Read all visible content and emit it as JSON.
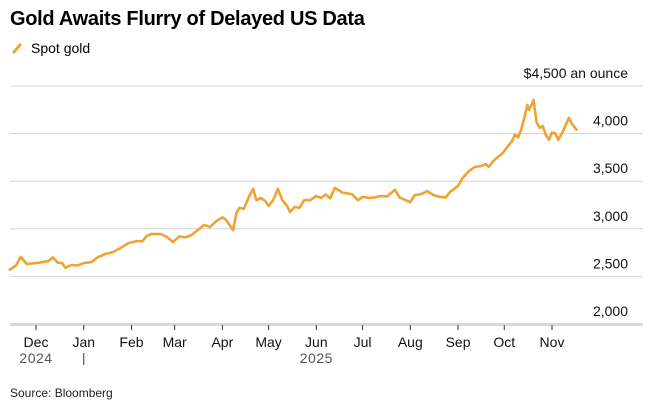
{
  "chart_data": {
    "type": "line",
    "title": "Gold Awaits Flurry of Delayed US Data",
    "xlabel": "",
    "ylabel": "",
    "y_unit_label": "$4,500 an ounce",
    "ylim": [
      2000,
      4500
    ],
    "y_ticks": [
      {
        "value": 4500,
        "label": "$4,500 an ounce"
      },
      {
        "value": 4000,
        "label": "4,000"
      },
      {
        "value": 3500,
        "label": "3,500"
      },
      {
        "value": 3000,
        "label": "3,000"
      },
      {
        "value": 2500,
        "label": "2,500"
      },
      {
        "value": 2000,
        "label": "2,000"
      }
    ],
    "x_range": [
      "2024-11-14",
      "2025-11-17"
    ],
    "x_ticks": [
      {
        "date": "2024-12-01",
        "label": "Dec"
      },
      {
        "date": "2025-01-01",
        "label": "Jan"
      },
      {
        "date": "2025-02-01",
        "label": "Feb"
      },
      {
        "date": "2025-03-01",
        "label": "Mar"
      },
      {
        "date": "2025-04-01",
        "label": "Apr"
      },
      {
        "date": "2025-05-01",
        "label": "May"
      },
      {
        "date": "2025-06-01",
        "label": "Jun"
      },
      {
        "date": "2025-07-01",
        "label": "Jul"
      },
      {
        "date": "2025-08-01",
        "label": "Aug"
      },
      {
        "date": "2025-09-01",
        "label": "Sep"
      },
      {
        "date": "2025-10-01",
        "label": "Oct"
      },
      {
        "date": "2025-11-01",
        "label": "Nov"
      }
    ],
    "year_labels": [
      {
        "date": "2024-12-01",
        "label": "2024"
      },
      {
        "date": "2025-06-01",
        "label": "2025"
      }
    ],
    "year_divider_date": "2025-01-01",
    "grid": true,
    "legend_position": "top-left",
    "series": [
      {
        "name": "Spot gold",
        "color": "#f0a232",
        "points": [
          [
            "2024-11-14",
            2570
          ],
          [
            "2024-11-18",
            2615
          ],
          [
            "2024-11-21",
            2705
          ],
          [
            "2024-11-25",
            2630
          ],
          [
            "2024-12-01",
            2640
          ],
          [
            "2024-12-05",
            2650
          ],
          [
            "2024-12-09",
            2660
          ],
          [
            "2024-12-12",
            2700
          ],
          [
            "2024-12-15",
            2645
          ],
          [
            "2024-12-18",
            2640
          ],
          [
            "2024-12-20",
            2590
          ],
          [
            "2024-12-24",
            2620
          ],
          [
            "2024-12-28",
            2615
          ],
          [
            "2025-01-01",
            2640
          ],
          [
            "2025-01-06",
            2650
          ],
          [
            "2025-01-10",
            2700
          ],
          [
            "2025-01-15",
            2735
          ],
          [
            "2025-01-20",
            2755
          ],
          [
            "2025-01-24",
            2790
          ],
          [
            "2025-01-30",
            2850
          ],
          [
            "2025-02-04",
            2870
          ],
          [
            "2025-02-08",
            2870
          ],
          [
            "2025-02-11",
            2925
          ],
          [
            "2025-02-14",
            2945
          ],
          [
            "2025-02-20",
            2945
          ],
          [
            "2025-02-24",
            2915
          ],
          [
            "2025-02-28",
            2860
          ],
          [
            "2025-03-04",
            2920
          ],
          [
            "2025-03-08",
            2910
          ],
          [
            "2025-03-12",
            2935
          ],
          [
            "2025-03-16",
            2985
          ],
          [
            "2025-03-20",
            3040
          ],
          [
            "2025-03-24",
            3020
          ],
          [
            "2025-03-28",
            3080
          ],
          [
            "2025-04-01",
            3120
          ],
          [
            "2025-04-03",
            3100
          ],
          [
            "2025-04-08",
            2985
          ],
          [
            "2025-04-10",
            3160
          ],
          [
            "2025-04-12",
            3220
          ],
          [
            "2025-04-15",
            3210
          ],
          [
            "2025-04-18",
            3330
          ],
          [
            "2025-04-21",
            3420
          ],
          [
            "2025-04-23",
            3300
          ],
          [
            "2025-04-26",
            3325
          ],
          [
            "2025-04-29",
            3290
          ],
          [
            "2025-05-01",
            3240
          ],
          [
            "2025-05-04",
            3300
          ],
          [
            "2025-05-07",
            3420
          ],
          [
            "2025-05-10",
            3300
          ],
          [
            "2025-05-13",
            3240
          ],
          [
            "2025-05-15",
            3175
          ],
          [
            "2025-05-18",
            3230
          ],
          [
            "2025-05-21",
            3220
          ],
          [
            "2025-05-24",
            3300
          ],
          [
            "2025-05-28",
            3300
          ],
          [
            "2025-06-01",
            3345
          ],
          [
            "2025-06-04",
            3325
          ],
          [
            "2025-06-07",
            3360
          ],
          [
            "2025-06-10",
            3320
          ],
          [
            "2025-06-13",
            3430
          ],
          [
            "2025-06-18",
            3380
          ],
          [
            "2025-06-24",
            3365
          ],
          [
            "2025-06-28",
            3300
          ],
          [
            "2025-07-01",
            3335
          ],
          [
            "2025-07-05",
            3325
          ],
          [
            "2025-07-09",
            3330
          ],
          [
            "2025-07-13",
            3345
          ],
          [
            "2025-07-17",
            3340
          ],
          [
            "2025-07-22",
            3410
          ],
          [
            "2025-07-25",
            3330
          ],
          [
            "2025-07-29",
            3300
          ],
          [
            "2025-08-01",
            3280
          ],
          [
            "2025-08-04",
            3355
          ],
          [
            "2025-08-08",
            3365
          ],
          [
            "2025-08-12",
            3395
          ],
          [
            "2025-08-16",
            3355
          ],
          [
            "2025-08-20",
            3335
          ],
          [
            "2025-08-24",
            3330
          ],
          [
            "2025-08-27",
            3390
          ],
          [
            "2025-09-01",
            3450
          ],
          [
            "2025-09-04",
            3535
          ],
          [
            "2025-09-08",
            3605
          ],
          [
            "2025-09-12",
            3650
          ],
          [
            "2025-09-16",
            3660
          ],
          [
            "2025-09-19",
            3680
          ],
          [
            "2025-09-21",
            3650
          ],
          [
            "2025-09-24",
            3715
          ],
          [
            "2025-09-27",
            3755
          ],
          [
            "2025-09-30",
            3795
          ],
          [
            "2025-10-03",
            3860
          ],
          [
            "2025-10-06",
            3920
          ],
          [
            "2025-10-08",
            3990
          ],
          [
            "2025-10-10",
            3960
          ],
          [
            "2025-10-12",
            4040
          ],
          [
            "2025-10-14",
            4165
          ],
          [
            "2025-10-16",
            4300
          ],
          [
            "2025-10-17",
            4250
          ],
          [
            "2025-10-19",
            4310
          ],
          [
            "2025-10-20",
            4355
          ],
          [
            "2025-10-22",
            4120
          ],
          [
            "2025-10-24",
            4060
          ],
          [
            "2025-10-26",
            4080
          ],
          [
            "2025-10-28",
            3985
          ],
          [
            "2025-10-30",
            3935
          ],
          [
            "2025-11-01",
            4010
          ],
          [
            "2025-11-03",
            4005
          ],
          [
            "2025-11-05",
            3935
          ],
          [
            "2025-11-08",
            4020
          ],
          [
            "2025-11-12",
            4165
          ],
          [
            "2025-11-14",
            4100
          ],
          [
            "2025-11-17",
            4040
          ]
        ]
      }
    ]
  },
  "legend": {
    "label": "Spot gold"
  },
  "footer": {
    "source": "Source: Bloomberg"
  }
}
